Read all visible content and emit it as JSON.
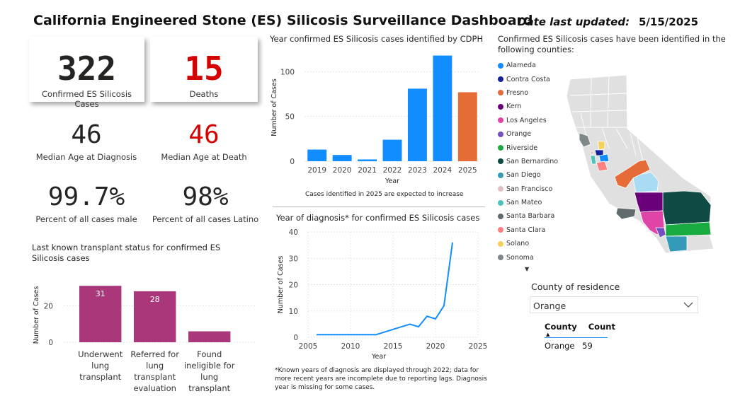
{
  "header": {
    "title": "California Engineered Stone (ES) Silicosis Surveillance Dashboard",
    "updated_label": "Date last updated:",
    "updated_value": "5/15/2025"
  },
  "kpis": {
    "cases": {
      "value": "322",
      "label": "Confirmed ES Silicosis Cases"
    },
    "deaths": {
      "value": "15",
      "label": "Deaths"
    },
    "median_age_dx": {
      "value": "46",
      "label": "Median Age at Diagnosis"
    },
    "median_age_death": {
      "value": "46",
      "label": "Median Age at Death"
    },
    "pct_male": {
      "value": "99.7%",
      "label": "Percent of all cases male"
    },
    "pct_latino": {
      "value": "98%",
      "label": "Percent of all cases Latino"
    }
  },
  "colors": {
    "blue": "#118DFF",
    "orange": "#E66C37",
    "magenta": "#A93779",
    "red": "#D50000"
  },
  "chart_data": [
    {
      "id": "cdph_year",
      "type": "bar",
      "title": "Year confirmed ES Silicosis cases identified by CDPH",
      "categories": [
        "2019",
        "2020",
        "2021",
        "2022",
        "2023",
        "2024",
        "2025"
      ],
      "values": [
        13,
        7,
        2,
        24,
        81,
        118,
        77
      ],
      "xlabel": "Year",
      "ylabel": "Number of Cases",
      "yticks": [
        0,
        50,
        100
      ],
      "ylim": [
        0,
        120
      ],
      "note": "Cases identified in 2025 are expected to increase"
    },
    {
      "id": "diagnosis_year",
      "type": "line",
      "title": "Year of diagnosis* for confirmed ES Silicosis cases",
      "x": [
        2006,
        2007,
        2008,
        2009,
        2010,
        2011,
        2012,
        2013,
        2014,
        2015,
        2016,
        2017,
        2018,
        2019,
        2020,
        2021,
        2022
      ],
      "y": [
        1,
        1,
        1,
        1,
        1,
        1,
        1,
        1,
        2,
        3,
        4,
        5,
        4,
        8,
        7,
        12,
        36
      ],
      "xlabel": "Year",
      "ylabel": "Number of Cases",
      "xticks": [
        2005,
        2010,
        2015,
        2020,
        2025
      ],
      "yticks": [
        0,
        10,
        20,
        30,
        40
      ],
      "xlim": [
        2005,
        2025
      ],
      "ylim": [
        0,
        40
      ],
      "footnote": "*Known years of diagnosis are displayed through 2022; data for more recent years are incomplete due to reporting lags. Diagnosis year is missing for some cases."
    },
    {
      "id": "transplant",
      "type": "bar",
      "title": "Last known transplant status for confirmed ES Silicosis cases",
      "categories": [
        "Underwent lung transplant",
        "Referred for lung transplant evaluation",
        "Found ineligible for lung transplant"
      ],
      "category_lines": [
        [
          "Underwent",
          "lung",
          "transplant"
        ],
        [
          "Referred for",
          "lung",
          "transplant",
          "evaluation"
        ],
        [
          "Found",
          "ineligible for",
          "lung",
          "transplant"
        ]
      ],
      "values": [
        31,
        28,
        6
      ],
      "data_labels": [
        "31",
        "28",
        ""
      ],
      "ylabel": "Number of Cases",
      "yticks": [
        0,
        20
      ],
      "ylim": [
        0,
        33
      ]
    }
  ],
  "map": {
    "title": "Confirmed ES Silicosis cases have been identified in the following counties:",
    "counties": [
      {
        "name": "Alameda",
        "color": "#118DFF"
      },
      {
        "name": "Contra Costa",
        "color": "#12239E"
      },
      {
        "name": "Fresno",
        "color": "#E66C37"
      },
      {
        "name": "Kern",
        "color": "#6B007B"
      },
      {
        "name": "Los Angeles",
        "color": "#E044A7"
      },
      {
        "name": "Orange",
        "color": "#744EC2"
      },
      {
        "name": "Riverside",
        "color": "#1AAB40"
      },
      {
        "name": "San Bernardino",
        "color": "#0F4A44"
      },
      {
        "name": "San Diego",
        "color": "#3599B8"
      },
      {
        "name": "San Francisco",
        "color": "#DFBFBF"
      },
      {
        "name": "San Mateo",
        "color": "#4AC5BB"
      },
      {
        "name": "Santa Barbara",
        "color": "#5F6B6D"
      },
      {
        "name": "Santa Clara",
        "color": "#FB8281"
      },
      {
        "name": "Solano",
        "color": "#F4D25A"
      },
      {
        "name": "Sonoma",
        "color": "#7F898A"
      }
    ],
    "tulare_color": "#A7DCF4"
  },
  "slicer": {
    "title": "County of residence",
    "selected": "Orange"
  },
  "table": {
    "col_county": "County",
    "col_count": "Count",
    "rows": [
      {
        "county": "Orange",
        "count": "59"
      }
    ]
  }
}
